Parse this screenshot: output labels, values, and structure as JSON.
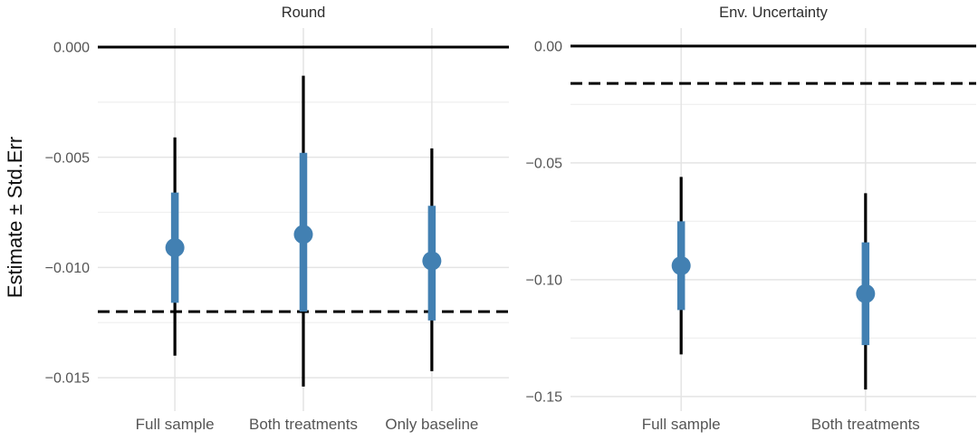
{
  "chart_data": {
    "type": "pointrange",
    "title": "",
    "ylabel": "Estimate ± Std.Err",
    "background": "#ffffff",
    "point_color": "#4280B2",
    "whisker_color": "#000000",
    "reference_line_color": "#000000",
    "major_grid_color": "#e4e4e4",
    "minor_grid_color": "#f0f0f0",
    "tick_label_color": "#555555",
    "legend": "none",
    "grid": "on",
    "panels": [
      {
        "title": "Round",
        "ylim": [
          -0.01635,
          0.00086
        ],
        "yticks": [
          0,
          -0.005,
          -0.01,
          -0.015
        ],
        "ytick_labels": [
          "0.000",
          "−0.005",
          "−0.010",
          "−0.015"
        ],
        "minor_gridlines": [
          -0.0025,
          -0.0075,
          -0.0125
        ],
        "solid_hline": 0,
        "dashed_hline": -0.012,
        "categories": [
          "Full sample",
          "Both treatments",
          "Only baseline"
        ],
        "series": [
          {
            "category": "Full sample",
            "estimate": -0.0091,
            "stderr_high": -0.0066,
            "stderr_low": -0.0116,
            "ci_high": -0.0041,
            "ci_low": -0.014
          },
          {
            "category": "Both treatments",
            "estimate": -0.0085,
            "stderr_high": -0.0048,
            "stderr_low": -0.012,
            "ci_high": -0.0013,
            "ci_low": -0.0154
          },
          {
            "category": "Only baseline",
            "estimate": -0.0097,
            "stderr_high": -0.0072,
            "stderr_low": -0.0124,
            "ci_high": -0.0046,
            "ci_low": -0.0147
          }
        ]
      },
      {
        "title": "Env. Uncertainty",
        "ylim": [
          -0.1547,
          0.0077
        ],
        "yticks": [
          0,
          -0.05,
          -0.1,
          -0.15
        ],
        "ytick_labels": [
          "0.00",
          "−0.05",
          "−0.10",
          "−0.15"
        ],
        "minor_gridlines": [
          -0.025,
          -0.075,
          -0.125
        ],
        "solid_hline": 0,
        "dashed_hline": -0.016,
        "categories": [
          "Full sample",
          "Both treatments"
        ],
        "series": [
          {
            "category": "Full sample",
            "estimate": -0.094,
            "stderr_high": -0.075,
            "stderr_low": -0.113,
            "ci_high": -0.056,
            "ci_low": -0.132
          },
          {
            "category": "Both treatments",
            "estimate": -0.106,
            "stderr_high": -0.084,
            "stderr_low": -0.128,
            "ci_high": -0.063,
            "ci_low": -0.147
          }
        ]
      }
    ]
  }
}
